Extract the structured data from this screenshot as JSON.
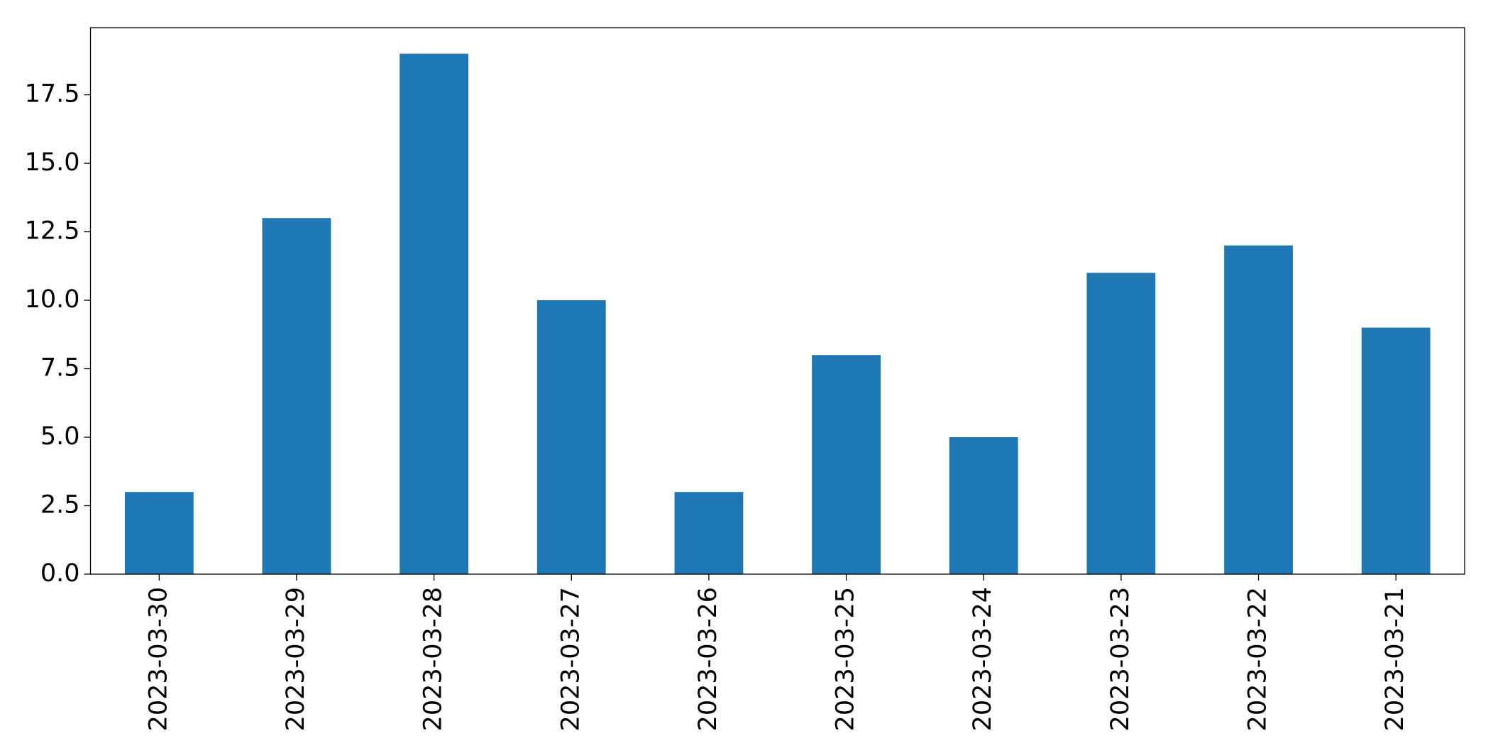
{
  "chart_data": {
    "type": "bar",
    "categories": [
      "2023-03-30",
      "2023-03-29",
      "2023-03-28",
      "2023-03-27",
      "2023-03-26",
      "2023-03-25",
      "2023-03-24",
      "2023-03-23",
      "2023-03-22",
      "2023-03-21"
    ],
    "values": [
      3,
      13,
      19,
      10,
      3,
      8,
      5,
      11,
      12,
      9
    ],
    "color": "#1f77b4",
    "ylim": [
      0,
      19.95
    ],
    "yticks": [
      {
        "value": 0,
        "label": "0.0"
      },
      2.5,
      {
        "value": 5,
        "label": "5.0"
      },
      7.5,
      {
        "value": 10,
        "label": "10.0"
      },
      12.5,
      {
        "value": 15,
        "label": "15.0"
      },
      17.5
    ],
    "grid": false
  }
}
